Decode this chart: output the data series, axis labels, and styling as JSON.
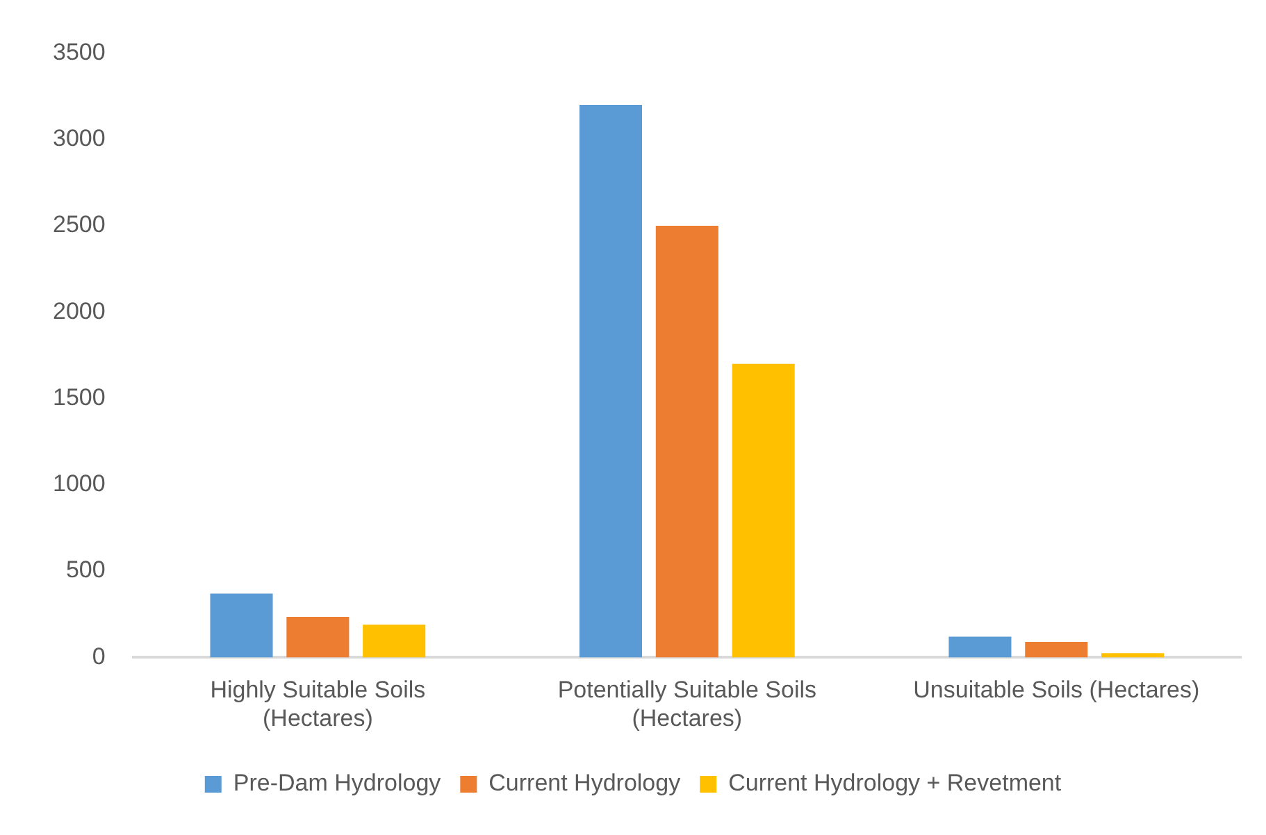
{
  "chart_data": {
    "type": "bar",
    "categories": [
      "Highly Suitable Soils (Hectares)",
      "Potentially Suitable Soils (Hectares)",
      "Unsuitable Soils (Hectares)"
    ],
    "series": [
      {
        "name": "Pre-Dam Hydrology",
        "color": "#5b9bd5",
        "values": [
          370,
          3200,
          120
        ]
      },
      {
        "name": "Current Hydrology",
        "color": "#ed7d31",
        "values": [
          235,
          2500,
          90
        ]
      },
      {
        "name": "Current Hydrology + Revetment",
        "color": "#ffc000",
        "values": [
          190,
          1700,
          25
        ]
      }
    ],
    "ylim": [
      0,
      3500
    ],
    "yticks": [
      0,
      500,
      1000,
      1500,
      2000,
      2500,
      3000,
      3500
    ],
    "grid": false,
    "legend": "bottom"
  }
}
